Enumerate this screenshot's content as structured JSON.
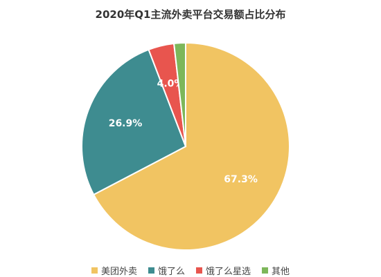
{
  "chart_data": {
    "type": "pie",
    "title": "2020年Q1主流外卖平台交易额占比分布",
    "categories": [
      "美团外卖",
      "饿了么",
      "饿了么星选",
      "其他"
    ],
    "values": [
      67.3,
      26.9,
      4.0,
      1.8
    ],
    "labels": [
      "67.3%",
      "26.9%",
      "4.0%",
      ""
    ],
    "colors": [
      "#F1C462",
      "#3E8C90",
      "#E8554E",
      "#7DB75A"
    ],
    "start_angle_deg": 0,
    "direction": "clockwise",
    "legend_position": "bottom"
  }
}
